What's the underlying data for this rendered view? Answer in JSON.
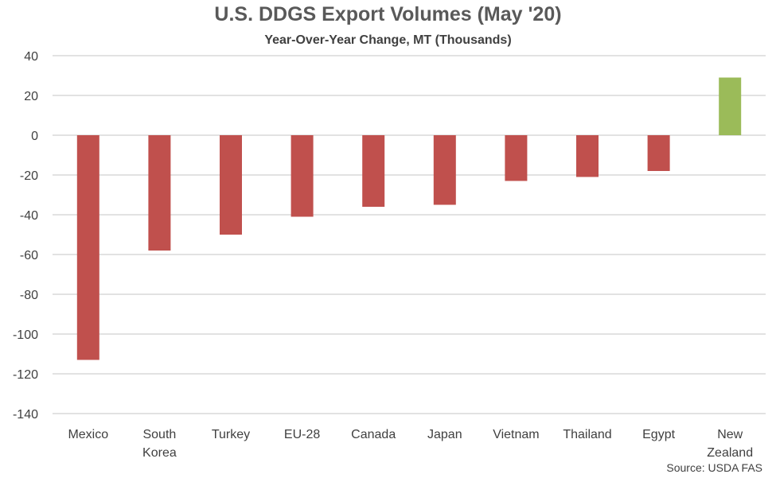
{
  "chart_data": {
    "type": "bar",
    "title": "U.S. DDGS Export Volumes (May '20)",
    "subtitle": "Year-Over-Year Change, MT (Thousands)",
    "source": "Source: USDA FAS",
    "categories": [
      [
        "Mexico"
      ],
      [
        "South",
        "Korea"
      ],
      [
        "Turkey"
      ],
      [
        "EU-28"
      ],
      [
        "Canada"
      ],
      [
        "Japan"
      ],
      [
        "Vietnam"
      ],
      [
        "Thailand"
      ],
      [
        "Egypt"
      ],
      [
        "New",
        "Zealand"
      ]
    ],
    "values": [
      -113,
      -58,
      -50,
      -41,
      -36,
      -35,
      -23,
      -21,
      -18,
      29
    ],
    "ylim": [
      -140,
      40
    ],
    "yticks": [
      40,
      20,
      0,
      -20,
      -40,
      -60,
      -80,
      -100,
      -120,
      -140
    ],
    "grid": true,
    "colors": {
      "negative": "#c0504d",
      "positive": "#9bbb59",
      "grid": "#d9d9d9",
      "axis_text": "#404040"
    }
  }
}
